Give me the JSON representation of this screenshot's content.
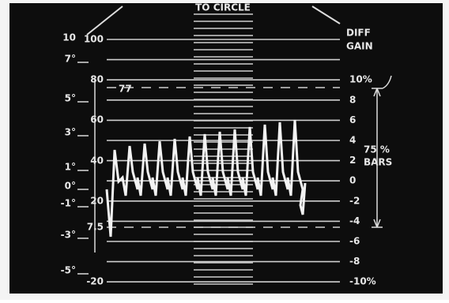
{
  "header": {
    "title": "TO CIRCLE"
  },
  "ire_scale": [
    "100",
    "80",
    "60",
    "40",
    "20",
    "7.5",
    "-20"
  ],
  "dashed_label": "77",
  "diff_gain": {
    "title": [
      "DIFF",
      "GAIN"
    ],
    "labels": [
      "10%",
      "8",
      "6",
      "4",
      "2",
      "0",
      "-2",
      "-4",
      "-6",
      "-8",
      "-10%"
    ]
  },
  "bars_label": [
    "75 %",
    "BARS"
  ],
  "phase_scale": [
    "10",
    "7°",
    "5°",
    "3°",
    "1°",
    "0°",
    "-1°",
    "-3°",
    "-5°"
  ]
}
